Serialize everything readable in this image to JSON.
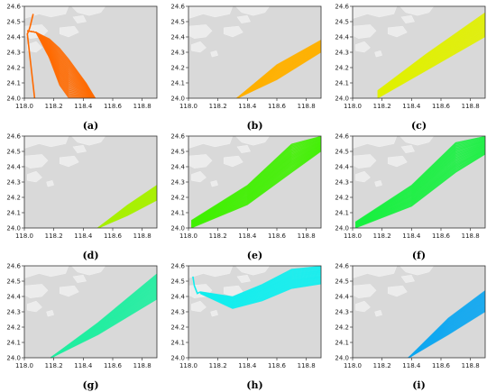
{
  "chart_data": [
    {
      "panel": "a",
      "caption": "(a)",
      "type": "line",
      "color": "#ff6a00",
      "xlim": [
        118.0,
        118.9
      ],
      "ylim": [
        24.0,
        24.6
      ],
      "x_ticks": [
        "118.0",
        "118.2",
        "118.4",
        "118.6",
        "118.8"
      ],
      "y_ticks": [
        "24.0",
        "24.1",
        "24.2",
        "24.3",
        "24.4",
        "24.5",
        "24.6"
      ],
      "series": [
        {
          "x": [
            118.02,
            118.08,
            118.17,
            118.24,
            118.3,
            118.36,
            118.42,
            118.48
          ],
          "y_low": [
            24.44,
            24.43,
            24.26,
            24.08,
            24.0,
            24.0,
            24.0,
            24.0
          ],
          "y_high": [
            24.44,
            24.43,
            24.39,
            24.33,
            24.26,
            24.18,
            24.1,
            24.0
          ]
        },
        {
          "x": [
            118.07,
            118.02,
            118.03,
            118.04,
            118.06
          ],
          "y": [
            24.0,
            24.42,
            24.44,
            24.47,
            24.55
          ]
        }
      ]
    },
    {
      "panel": "b",
      "caption": "(b)",
      "type": "line",
      "color": "#ffb000",
      "xlim": [
        118.0,
        118.9
      ],
      "ylim": [
        24.0,
        24.6
      ],
      "x_ticks": [
        "118.0",
        "118.2",
        "118.4",
        "118.6",
        "118.8"
      ],
      "y_ticks": [
        "24.0",
        "24.1",
        "24.2",
        "24.3",
        "24.4",
        "24.5",
        "24.6"
      ],
      "series": [
        {
          "x": [
            118.33,
            118.6,
            118.9
          ],
          "y_low": [
            24.0,
            24.12,
            24.3
          ],
          "y_high": [
            24.0,
            24.22,
            24.38
          ]
        }
      ]
    },
    {
      "panel": "c",
      "caption": "(c)",
      "type": "line",
      "color": "#e0f000",
      "xlim": [
        118.0,
        118.9
      ],
      "ylim": [
        24.0,
        24.6
      ],
      "x_ticks": [
        "118.0",
        "118.2",
        "118.4",
        "118.6",
        "118.8"
      ],
      "y_ticks": [
        "24.0",
        "24.1",
        "24.2",
        "24.3",
        "24.4",
        "24.5",
        "24.6"
      ],
      "series": [
        {
          "x": [
            118.17,
            118.5,
            118.9
          ],
          "y_low": [
            24.0,
            24.18,
            24.4
          ],
          "y_high": [
            24.05,
            24.29,
            24.56
          ]
        }
      ]
    },
    {
      "panel": "d",
      "caption": "(d)",
      "type": "line",
      "color": "#a8f000",
      "xlim": [
        118.0,
        118.9
      ],
      "ylim": [
        24.0,
        24.6
      ],
      "x_ticks": [
        "118.0",
        "118.2",
        "118.4",
        "118.6",
        "118.8"
      ],
      "y_ticks": [
        "24.0",
        "24.1",
        "24.2",
        "24.3",
        "24.4",
        "24.5",
        "24.6"
      ],
      "series": [
        {
          "x": [
            118.5,
            118.7,
            118.9
          ],
          "y_low": [
            24.0,
            24.08,
            24.18
          ],
          "y_high": [
            24.0,
            24.15,
            24.28
          ]
        }
      ]
    },
    {
      "panel": "e",
      "caption": "(e)",
      "type": "line",
      "color": "#40f000",
      "xlim": [
        118.0,
        118.9
      ],
      "ylim": [
        24.0,
        24.6
      ],
      "x_ticks": [
        "118.0",
        "118.2",
        "118.4",
        "118.6",
        "118.8"
      ],
      "y_ticks": [
        "24.0",
        "24.1",
        "24.2",
        "24.3",
        "24.4",
        "24.5",
        "24.6"
      ],
      "series": [
        {
          "x": [
            118.02,
            118.4,
            118.7,
            118.9
          ],
          "y_low": [
            24.0,
            24.15,
            24.36,
            24.5
          ],
          "y_high": [
            24.05,
            24.28,
            24.55,
            24.6
          ]
        }
      ]
    },
    {
      "panel": "f",
      "caption": "(f)",
      "type": "line",
      "color": "#18f040",
      "xlim": [
        118.0,
        118.9
      ],
      "ylim": [
        24.0,
        24.6
      ],
      "x_ticks": [
        "118.0",
        "118.2",
        "118.4",
        "118.6",
        "118.8"
      ],
      "y_ticks": [
        "24.0",
        "24.1",
        "24.2",
        "24.3",
        "24.4",
        "24.5",
        "24.6"
      ],
      "series": [
        {
          "x": [
            118.02,
            118.4,
            118.7,
            118.9
          ],
          "y_low": [
            24.0,
            24.14,
            24.36,
            24.48
          ],
          "y_high": [
            24.04,
            24.28,
            24.56,
            24.6
          ]
        }
      ]
    },
    {
      "panel": "g",
      "caption": "(g)",
      "type": "line",
      "color": "#20eea0",
      "xlim": [
        118.0,
        118.9
      ],
      "ylim": [
        24.0,
        24.6
      ],
      "x_ticks": [
        "118.0",
        "118.2",
        "118.4",
        "118.6",
        "118.8"
      ],
      "y_ticks": [
        "24.0",
        "24.1",
        "24.2",
        "24.3",
        "24.4",
        "24.5",
        "24.6"
      ],
      "series": [
        {
          "x": [
            118.18,
            118.5,
            118.9
          ],
          "y_low": [
            24.0,
            24.15,
            24.38
          ],
          "y_high": [
            24.0,
            24.23,
            24.55
          ]
        }
      ]
    },
    {
      "panel": "h",
      "caption": "(h)",
      "type": "line",
      "color": "#10eeee",
      "xlim": [
        118.0,
        118.9
      ],
      "ylim": [
        24.0,
        24.6
      ],
      "x_ticks": [
        "118.0",
        "118.2",
        "118.4",
        "118.6",
        "118.8"
      ],
      "y_ticks": [
        "24.0",
        "24.1",
        "24.2",
        "24.3",
        "24.4",
        "24.5",
        "24.6"
      ],
      "series": [
        {
          "x": [
            118.08,
            118.3,
            118.5,
            118.7,
            118.9
          ],
          "y_low": [
            24.42,
            24.32,
            24.37,
            24.45,
            24.48
          ],
          "y_high": [
            24.43,
            24.4,
            24.48,
            24.58,
            24.6
          ]
        },
        {
          "x": [
            118.03,
            118.04,
            118.06,
            118.08
          ],
          "y": [
            24.53,
            24.47,
            24.42,
            24.43
          ]
        }
      ]
    },
    {
      "panel": "i",
      "caption": "(i)",
      "type": "line",
      "color": "#10a8f0",
      "xlim": [
        118.0,
        118.9
      ],
      "ylim": [
        24.0,
        24.6
      ],
      "x_ticks": [
        "118.0",
        "118.2",
        "118.4",
        "118.6",
        "118.8"
      ],
      "y_ticks": [
        "24.0",
        "24.1",
        "24.2",
        "24.3",
        "24.4",
        "24.5",
        "24.6"
      ],
      "series": [
        {
          "x": [
            118.38,
            118.65,
            118.9
          ],
          "y_low": [
            24.0,
            24.15,
            24.3
          ],
          "y_high": [
            24.0,
            24.26,
            24.44
          ]
        }
      ]
    }
  ]
}
